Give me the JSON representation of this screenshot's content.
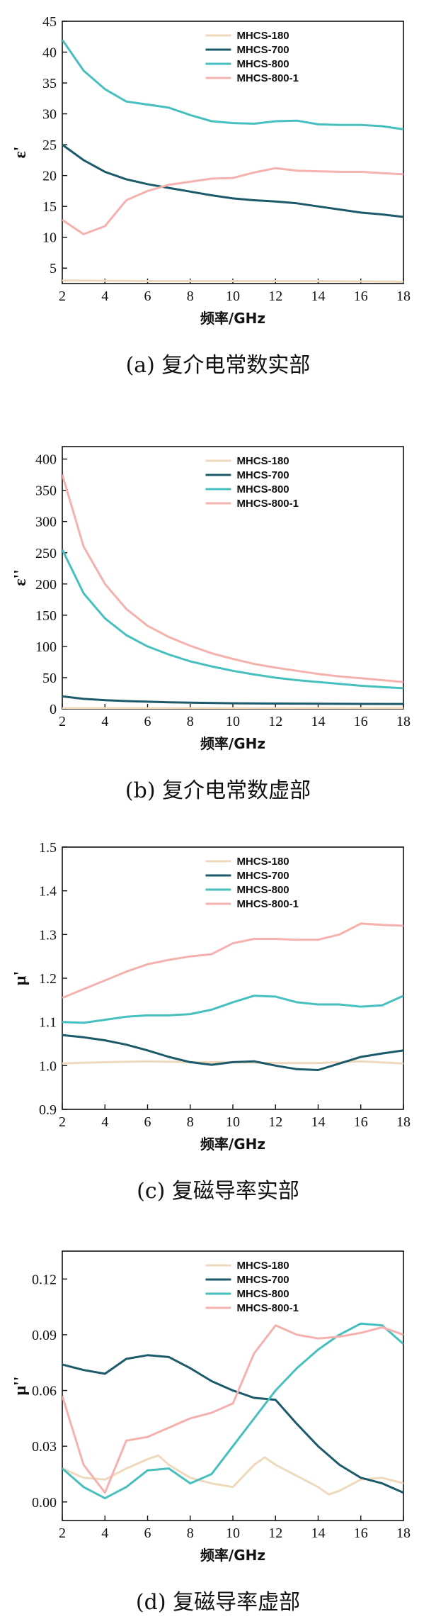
{
  "colors": {
    "MHCS-180": "#efd9bd",
    "MHCS-700": "#1c5a6b",
    "MHCS-800": "#48bfbf",
    "MHCS-800-1": "#f4b1ae"
  },
  "chart_data": [
    {
      "type": "line",
      "caption": "(a) 复介电常数实部",
      "ylabel": "ε'",
      "xlabel": "频率/GHz",
      "xlim": [
        2,
        18
      ],
      "ylim": [
        2.5,
        45
      ],
      "xticks": [
        2,
        4,
        6,
        8,
        10,
        12,
        14,
        16,
        18
      ],
      "yticks": [
        5,
        10,
        15,
        20,
        25,
        30,
        35,
        40,
        45
      ],
      "ytick_labels": [
        "5",
        "10",
        "15",
        "20",
        "25",
        "30",
        "35",
        "40",
        "45"
      ],
      "legend": [
        "MHCS-180",
        "MHCS-700",
        "MHCS-800",
        "MHCS-800-1"
      ],
      "series": [
        {
          "name": "MHCS-180",
          "x": [
            2,
            6,
            10,
            14,
            18
          ],
          "values": [
            3,
            2.9,
            2.9,
            2.9,
            2.8
          ]
        },
        {
          "name": "MHCS-700",
          "x": [
            2,
            3,
            4,
            5,
            6,
            7,
            8,
            9,
            10,
            11,
            12,
            13,
            14,
            15,
            16,
            17,
            18
          ],
          "values": [
            25.0,
            22.5,
            20.6,
            19.4,
            18.6,
            18.0,
            17.4,
            16.8,
            16.3,
            16.0,
            15.8,
            15.5,
            15.0,
            14.5,
            14.0,
            13.7,
            13.3
          ]
        },
        {
          "name": "MHCS-800",
          "x": [
            2,
            3,
            4,
            5,
            6,
            7,
            8,
            9,
            10,
            11,
            12,
            13,
            14,
            15,
            16,
            17,
            18
          ],
          "values": [
            42.0,
            37.0,
            34.0,
            32.0,
            31.5,
            31.0,
            29.8,
            28.8,
            28.5,
            28.4,
            28.8,
            28.9,
            28.3,
            28.2,
            28.2,
            28.0,
            27.5
          ]
        },
        {
          "name": "MHCS-800-1",
          "x": [
            2,
            3,
            4,
            5,
            6,
            7,
            8,
            9,
            10,
            11,
            12,
            13,
            14,
            15,
            16,
            17,
            18
          ],
          "values": [
            12.8,
            10.5,
            11.8,
            16.0,
            17.5,
            18.5,
            19.0,
            19.5,
            19.6,
            20.5,
            21.2,
            20.8,
            20.7,
            20.6,
            20.6,
            20.4,
            20.2
          ]
        }
      ]
    },
    {
      "type": "line",
      "caption": "(b) 复介电常数虚部",
      "ylabel": "ε''",
      "xlabel": "频率/GHz",
      "xlim": [
        2,
        18
      ],
      "ylim": [
        0,
        420
      ],
      "xticks": [
        2,
        4,
        6,
        8,
        10,
        12,
        14,
        16,
        18
      ],
      "yticks": [
        0,
        50,
        100,
        150,
        200,
        250,
        300,
        350,
        400
      ],
      "ytick_labels": [
        "0",
        "50",
        "100",
        "150",
        "200",
        "250",
        "300",
        "350",
        "400"
      ],
      "legend": [
        "MHCS-180",
        "MHCS-700",
        "MHCS-800",
        "MHCS-800-1"
      ],
      "series": [
        {
          "name": "MHCS-180",
          "x": [
            2,
            6,
            10,
            14,
            18
          ],
          "values": [
            1,
            1,
            1,
            1,
            1
          ]
        },
        {
          "name": "MHCS-700",
          "x": [
            2,
            3,
            4,
            5,
            6,
            7,
            8,
            10,
            12,
            14,
            16,
            18
          ],
          "values": [
            20,
            16,
            14,
            12.5,
            11.5,
            10.5,
            10,
            9,
            8.5,
            8.2,
            8,
            7.8
          ]
        },
        {
          "name": "MHCS-800",
          "x": [
            2,
            3,
            4,
            5,
            6,
            7,
            8,
            9,
            10,
            11,
            12,
            13,
            14,
            15,
            16,
            17,
            18
          ],
          "values": [
            255,
            185,
            145,
            118,
            100,
            87,
            76,
            68,
            61,
            55,
            50,
            46,
            43,
            40,
            37,
            35,
            33
          ]
        },
        {
          "name": "MHCS-800-1",
          "x": [
            2,
            3,
            4,
            5,
            6,
            7,
            8,
            9,
            10,
            11,
            12,
            13,
            14,
            15,
            16,
            17,
            18
          ],
          "values": [
            375,
            260,
            200,
            160,
            133,
            115,
            101,
            89,
            80,
            72,
            66,
            61,
            56,
            52,
            49,
            46,
            43
          ]
        }
      ]
    },
    {
      "type": "line",
      "caption": "(c) 复磁导率实部",
      "ylabel": "μ'",
      "xlabel": "频率/GHz",
      "xlim": [
        2,
        18
      ],
      "ylim": [
        0.9,
        1.5
      ],
      "xticks": [
        2,
        4,
        6,
        8,
        10,
        12,
        14,
        16,
        18
      ],
      "yticks": [
        0.9,
        1.0,
        1.1,
        1.2,
        1.3,
        1.4,
        1.5
      ],
      "ytick_labels": [
        "0.9",
        "1.0",
        "1.1",
        "1.2",
        "1.3",
        "1.4",
        "1.5"
      ],
      "legend": [
        "MHCS-180",
        "MHCS-700",
        "MHCS-800",
        "MHCS-800-1"
      ],
      "series": [
        {
          "name": "MHCS-180",
          "x": [
            2,
            4,
            6,
            8,
            10,
            12,
            14,
            16,
            18
          ],
          "values": [
            1.005,
            1.008,
            1.01,
            1.008,
            1.008,
            1.006,
            1.006,
            1.01,
            1.005
          ]
        },
        {
          "name": "MHCS-700",
          "x": [
            2,
            3,
            4,
            5,
            6,
            7,
            8,
            9,
            10,
            11,
            12,
            13,
            14,
            15,
            16,
            17,
            18
          ],
          "values": [
            1.07,
            1.065,
            1.058,
            1.048,
            1.035,
            1.02,
            1.008,
            1.002,
            1.008,
            1.01,
            1.0,
            0.992,
            0.99,
            1.005,
            1.02,
            1.028,
            1.035
          ]
        },
        {
          "name": "MHCS-800",
          "x": [
            2,
            3,
            4,
            5,
            6,
            7,
            8,
            9,
            10,
            11,
            12,
            13,
            14,
            15,
            16,
            17,
            18
          ],
          "values": [
            1.1,
            1.098,
            1.105,
            1.112,
            1.115,
            1.115,
            1.118,
            1.128,
            1.145,
            1.16,
            1.158,
            1.145,
            1.14,
            1.14,
            1.135,
            1.138,
            1.16
          ]
        },
        {
          "name": "MHCS-800-1",
          "x": [
            2,
            3,
            4,
            5,
            6,
            7,
            8,
            9,
            10,
            11,
            12,
            13,
            14,
            15,
            16,
            17,
            18
          ],
          "values": [
            1.155,
            1.175,
            1.195,
            1.215,
            1.232,
            1.242,
            1.25,
            1.255,
            1.28,
            1.29,
            1.29,
            1.288,
            1.288,
            1.3,
            1.325,
            1.322,
            1.32
          ]
        }
      ]
    },
    {
      "type": "line",
      "caption": "(d) 复磁导率虚部",
      "ylabel": "μ''",
      "xlabel": "频率/GHz",
      "xlim": [
        2,
        18
      ],
      "ylim": [
        -0.01,
        0.135
      ],
      "xticks": [
        2,
        4,
        6,
        8,
        10,
        12,
        14,
        16,
        18
      ],
      "yticks": [
        0.0,
        0.03,
        0.06,
        0.09,
        0.12
      ],
      "ytick_labels": [
        "0.00",
        "0.03",
        "0.06",
        "0.09",
        "0.12"
      ],
      "legend": [
        "MHCS-180",
        "MHCS-700",
        "MHCS-800",
        "MHCS-800-1"
      ],
      "series": [
        {
          "name": "MHCS-180",
          "x": [
            2,
            3,
            4,
            5,
            6,
            6.5,
            7,
            8,
            9,
            10,
            11,
            11.5,
            12,
            13,
            14,
            14.5,
            15,
            16,
            17,
            18
          ],
          "values": [
            0.018,
            0.013,
            0.012,
            0.018,
            0.023,
            0.025,
            0.02,
            0.013,
            0.01,
            0.008,
            0.02,
            0.024,
            0.02,
            0.014,
            0.008,
            0.004,
            0.006,
            0.012,
            0.013,
            0.01
          ]
        },
        {
          "name": "MHCS-700",
          "x": [
            2,
            3,
            4,
            5,
            6,
            7,
            8,
            9,
            10,
            11,
            12,
            13,
            14,
            15,
            16,
            17,
            18
          ],
          "values": [
            0.074,
            0.071,
            0.069,
            0.077,
            0.079,
            0.078,
            0.072,
            0.065,
            0.06,
            0.056,
            0.055,
            0.042,
            0.03,
            0.02,
            0.013,
            0.01,
            0.005
          ]
        },
        {
          "name": "MHCS-800",
          "x": [
            2,
            3,
            4,
            5,
            6,
            7,
            8,
            9,
            10,
            11,
            12,
            13,
            14,
            15,
            16,
            17,
            18
          ],
          "values": [
            0.018,
            0.008,
            0.002,
            0.008,
            0.017,
            0.018,
            0.01,
            0.015,
            0.03,
            0.045,
            0.06,
            0.072,
            0.082,
            0.09,
            0.096,
            0.095,
            0.085
          ]
        },
        {
          "name": "MHCS-800-1",
          "x": [
            2,
            3,
            4,
            5,
            6,
            7,
            8,
            9,
            10,
            11,
            12,
            13,
            14,
            15,
            16,
            17,
            18
          ],
          "values": [
            0.057,
            0.02,
            0.005,
            0.033,
            0.035,
            0.04,
            0.045,
            0.048,
            0.053,
            0.08,
            0.095,
            0.09,
            0.088,
            0.089,
            0.091,
            0.094,
            0.09
          ]
        }
      ]
    }
  ]
}
